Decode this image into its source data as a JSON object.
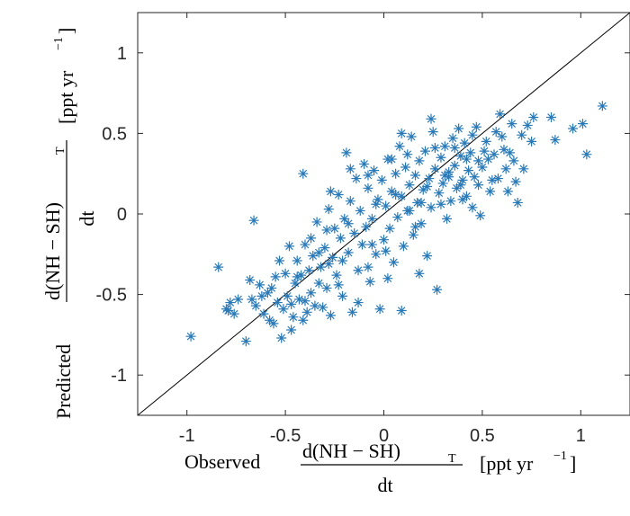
{
  "chart_data": {
    "type": "scatter",
    "title": "",
    "xlabel": {
      "prefix": "Observed",
      "numerator": "d(NH − SH)",
      "subscript": "T",
      "denominator": "dt",
      "unit_open": "[ppt yr",
      "unit_exp": "−1",
      "unit_close": "]"
    },
    "ylabel": {
      "prefix": "Predicted",
      "numerator": "d(NH − SH)",
      "subscript": "T",
      "denominator": "dt",
      "unit_open": "[ppt yr",
      "unit_exp": "−1",
      "unit_close": "]"
    },
    "xlim": [
      -1.25,
      1.25
    ],
    "ylim": [
      -1.25,
      1.25
    ],
    "xticks": [
      -1,
      -0.5,
      0,
      0.5,
      1
    ],
    "xtick_labels": [
      "-1",
      "-0.5",
      "0",
      "0.5",
      "1"
    ],
    "yticks": [
      -1,
      -0.5,
      0,
      0.5,
      1
    ],
    "ytick_labels": [
      "-1",
      "-0.5",
      "0",
      "0.5",
      "1"
    ],
    "grid": false,
    "marker": "asterisk",
    "marker_color": "#2a7ab8",
    "reference_line": {
      "type": "identity",
      "color": "#000000"
    },
    "points": [
      [
        -0.98,
        -0.76
      ],
      [
        -0.84,
        -0.33
      ],
      [
        -0.8,
        -0.59
      ],
      [
        -0.78,
        -0.55
      ],
      [
        -0.76,
        -0.62
      ],
      [
        -0.7,
        -0.79
      ],
      [
        -0.68,
        -0.41
      ],
      [
        -0.66,
        -0.04
      ],
      [
        -0.65,
        -0.57
      ],
      [
        -0.63,
        -0.44
      ],
      [
        -0.61,
        -0.62
      ],
      [
        -0.59,
        -0.49
      ],
      [
        -0.57,
        -0.46
      ],
      [
        -0.56,
        -0.68
      ],
      [
        -0.54,
        -0.55
      ],
      [
        -0.52,
        -0.77
      ],
      [
        -0.51,
        -0.59
      ],
      [
        -0.5,
        -0.37
      ],
      [
        -0.49,
        -0.51
      ],
      [
        -0.48,
        -0.2
      ],
      [
        -0.47,
        -0.72
      ],
      [
        -0.46,
        -0.64
      ],
      [
        -0.45,
        -0.43
      ],
      [
        -0.44,
        -0.29
      ],
      [
        -0.43,
        -0.53
      ],
      [
        -0.42,
        -0.38
      ],
      [
        -0.41,
        -0.66
      ],
      [
        -0.4,
        -0.19
      ],
      [
        -0.39,
        -0.61
      ],
      [
        -0.38,
        -0.35
      ],
      [
        -0.37,
        -0.49
      ],
      [
        -0.36,
        -0.26
      ],
      [
        -0.35,
        -0.57
      ],
      [
        -0.34,
        -0.05
      ],
      [
        -0.33,
        -0.43
      ],
      [
        -0.32,
        -0.33
      ],
      [
        -0.31,
        -0.58
      ],
      [
        -0.3,
        -0.21
      ],
      [
        -0.29,
        -0.46
      ],
      [
        -0.28,
        0.03
      ],
      [
        -0.27,
        -0.63
      ],
      [
        -0.26,
        -0.27
      ],
      [
        -0.25,
        -0.09
      ],
      [
        -0.24,
        -0.38
      ],
      [
        -0.23,
        0.12
      ],
      [
        -0.22,
        -0.15
      ],
      [
        -0.21,
        -0.51
      ],
      [
        -0.2,
        -0.03
      ],
      [
        -0.19,
        0.38
      ],
      [
        -0.18,
        -0.24
      ],
      [
        -0.17,
        0.08
      ],
      [
        -0.16,
        -0.61
      ],
      [
        -0.15,
        -0.12
      ],
      [
        -0.14,
        0.22
      ],
      [
        -0.13,
        -0.35
      ],
      [
        -0.12,
        0.02
      ],
      [
        -0.11,
        -0.19
      ],
      [
        -0.1,
        0.31
      ],
      [
        -0.09,
        -0.08
      ],
      [
        -0.08,
        0.16
      ],
      [
        -0.07,
        -0.42
      ],
      [
        -0.06,
        -0.03
      ],
      [
        -0.05,
        0.27
      ],
      [
        -0.04,
        -0.25
      ],
      [
        -0.03,
        0.09
      ],
      [
        -0.02,
        -0.59
      ],
      [
        -0.01,
        0.21
      ],
      [
        0.0,
        -0.16
      ],
      [
        0.01,
        0.05
      ],
      [
        0.02,
        0.34
      ],
      [
        0.03,
        -0.09
      ],
      [
        0.04,
        0.14
      ],
      [
        0.05,
        -0.3
      ],
      [
        0.06,
        0.25
      ],
      [
        0.07,
        -0.02
      ],
      [
        0.08,
        0.42
      ],
      [
        0.09,
        0.11
      ],
      [
        0.1,
        -0.2
      ],
      [
        0.11,
        0.29
      ],
      [
        0.12,
        0.02
      ],
      [
        0.13,
        0.18
      ],
      [
        0.14,
        0.48
      ],
      [
        0.15,
        -0.13
      ],
      [
        0.16,
        0.24
      ],
      [
        0.17,
        0.07
      ],
      [
        0.18,
        0.33
      ],
      [
        0.19,
        -0.06
      ],
      [
        0.2,
        0.15
      ],
      [
        0.21,
        0.39
      ],
      [
        0.22,
        -0.26
      ],
      [
        0.23,
        0.22
      ],
      [
        0.24,
        0.04
      ],
      [
        0.25,
        0.51
      ],
      [
        0.26,
        0.28
      ],
      [
        0.27,
        -0.47
      ],
      [
        0.28,
        0.13
      ],
      [
        0.29,
        0.35
      ],
      [
        0.3,
        0.19
      ],
      [
        0.31,
        0.42
      ],
      [
        0.32,
        -0.03
      ],
      [
        0.33,
        0.26
      ],
      [
        0.34,
        0.08
      ],
      [
        0.35,
        0.47
      ],
      [
        0.36,
        0.3
      ],
      [
        0.37,
        0.16
      ],
      [
        0.38,
        0.53
      ],
      [
        0.39,
        0.36
      ],
      [
        0.4,
        0.21
      ],
      [
        0.41,
        0.44
      ],
      [
        0.42,
        0.11
      ],
      [
        0.43,
        0.27
      ],
      [
        0.44,
        0.38
      ],
      [
        0.45,
        0.04
      ],
      [
        0.46,
        0.23
      ],
      [
        0.47,
        0.54
      ],
      [
        0.48,
        0.33
      ],
      [
        0.49,
        -0.01
      ],
      [
        0.5,
        0.29
      ],
      [
        0.52,
        0.45
      ],
      [
        0.54,
        0.14
      ],
      [
        0.56,
        0.37
      ],
      [
        0.58,
        0.22
      ],
      [
        0.59,
        0.62
      ],
      [
        0.6,
        0.48
      ],
      [
        0.62,
        0.28
      ],
      [
        0.63,
        0.14
      ],
      [
        0.65,
        0.56
      ],
      [
        0.66,
        0.33
      ],
      [
        0.68,
        0.07
      ],
      [
        0.7,
        0.49
      ],
      [
        0.71,
        0.28
      ],
      [
        0.73,
        0.55
      ],
      [
        0.75,
        0.45
      ],
      [
        0.76,
        0.6
      ],
      [
        0.85,
        0.6
      ],
      [
        0.87,
        0.46
      ],
      [
        0.96,
        0.53
      ],
      [
        1.01,
        0.56
      ],
      [
        1.03,
        0.37
      ],
      [
        1.11,
        0.67
      ],
      [
        -0.79,
        -0.6
      ],
      [
        -0.74,
        -0.53
      ],
      [
        -0.62,
        -0.51
      ],
      [
        -0.58,
        -0.66
      ],
      [
        -0.53,
        -0.29
      ],
      [
        -0.47,
        -0.56
      ],
      [
        -0.41,
        0.25
      ],
      [
        -0.33,
        -0.24
      ],
      [
        -0.29,
        -0.1
      ],
      [
        -0.23,
        -0.44
      ],
      [
        -0.18,
        -0.06
      ],
      [
        -0.13,
        -0.55
      ],
      [
        -0.08,
        -0.33
      ],
      [
        -0.04,
        0.06
      ],
      [
        0.02,
        -0.4
      ],
      [
        0.06,
        0.12
      ],
      [
        0.09,
        -0.6
      ],
      [
        0.12,
        0.37
      ],
      [
        0.16,
        -0.08
      ],
      [
        0.19,
        0.07
      ],
      [
        0.22,
        0.17
      ],
      [
        0.26,
        0.41
      ],
      [
        0.29,
        0.06
      ],
      [
        0.33,
        0.23
      ],
      [
        0.36,
        0.41
      ],
      [
        0.39,
        0.18
      ],
      [
        0.42,
        0.34
      ],
      [
        0.45,
        0.49
      ],
      [
        0.48,
        0.18
      ],
      [
        0.51,
        0.39
      ],
      [
        0.55,
        0.21
      ],
      [
        0.61,
        0.4
      ],
      [
        0.67,
        0.2
      ],
      [
        0.57,
        0.51
      ],
      [
        0.24,
        0.59
      ],
      [
        0.09,
        0.5
      ],
      [
        0.04,
        0.34
      ],
      [
        -0.08,
        0.24
      ],
      [
        -0.17,
        0.28
      ],
      [
        -0.27,
        0.14
      ],
      [
        -0.37,
        -0.15
      ],
      [
        -0.44,
        -0.39
      ],
      [
        -0.55,
        -0.39
      ],
      [
        -0.67,
        -0.53
      ],
      [
        -0.28,
        -0.31
      ],
      [
        -0.06,
        -0.19
      ],
      [
        0.13,
        0.02
      ],
      [
        0.31,
        0.24
      ],
      [
        0.18,
        -0.37
      ],
      [
        0.01,
        -0.23
      ],
      [
        -0.21,
        -0.29
      ],
      [
        -0.4,
        -0.54
      ],
      [
        0.4,
        0.09
      ],
      [
        0.53,
        0.34
      ],
      [
        0.64,
        0.38
      ]
    ]
  }
}
